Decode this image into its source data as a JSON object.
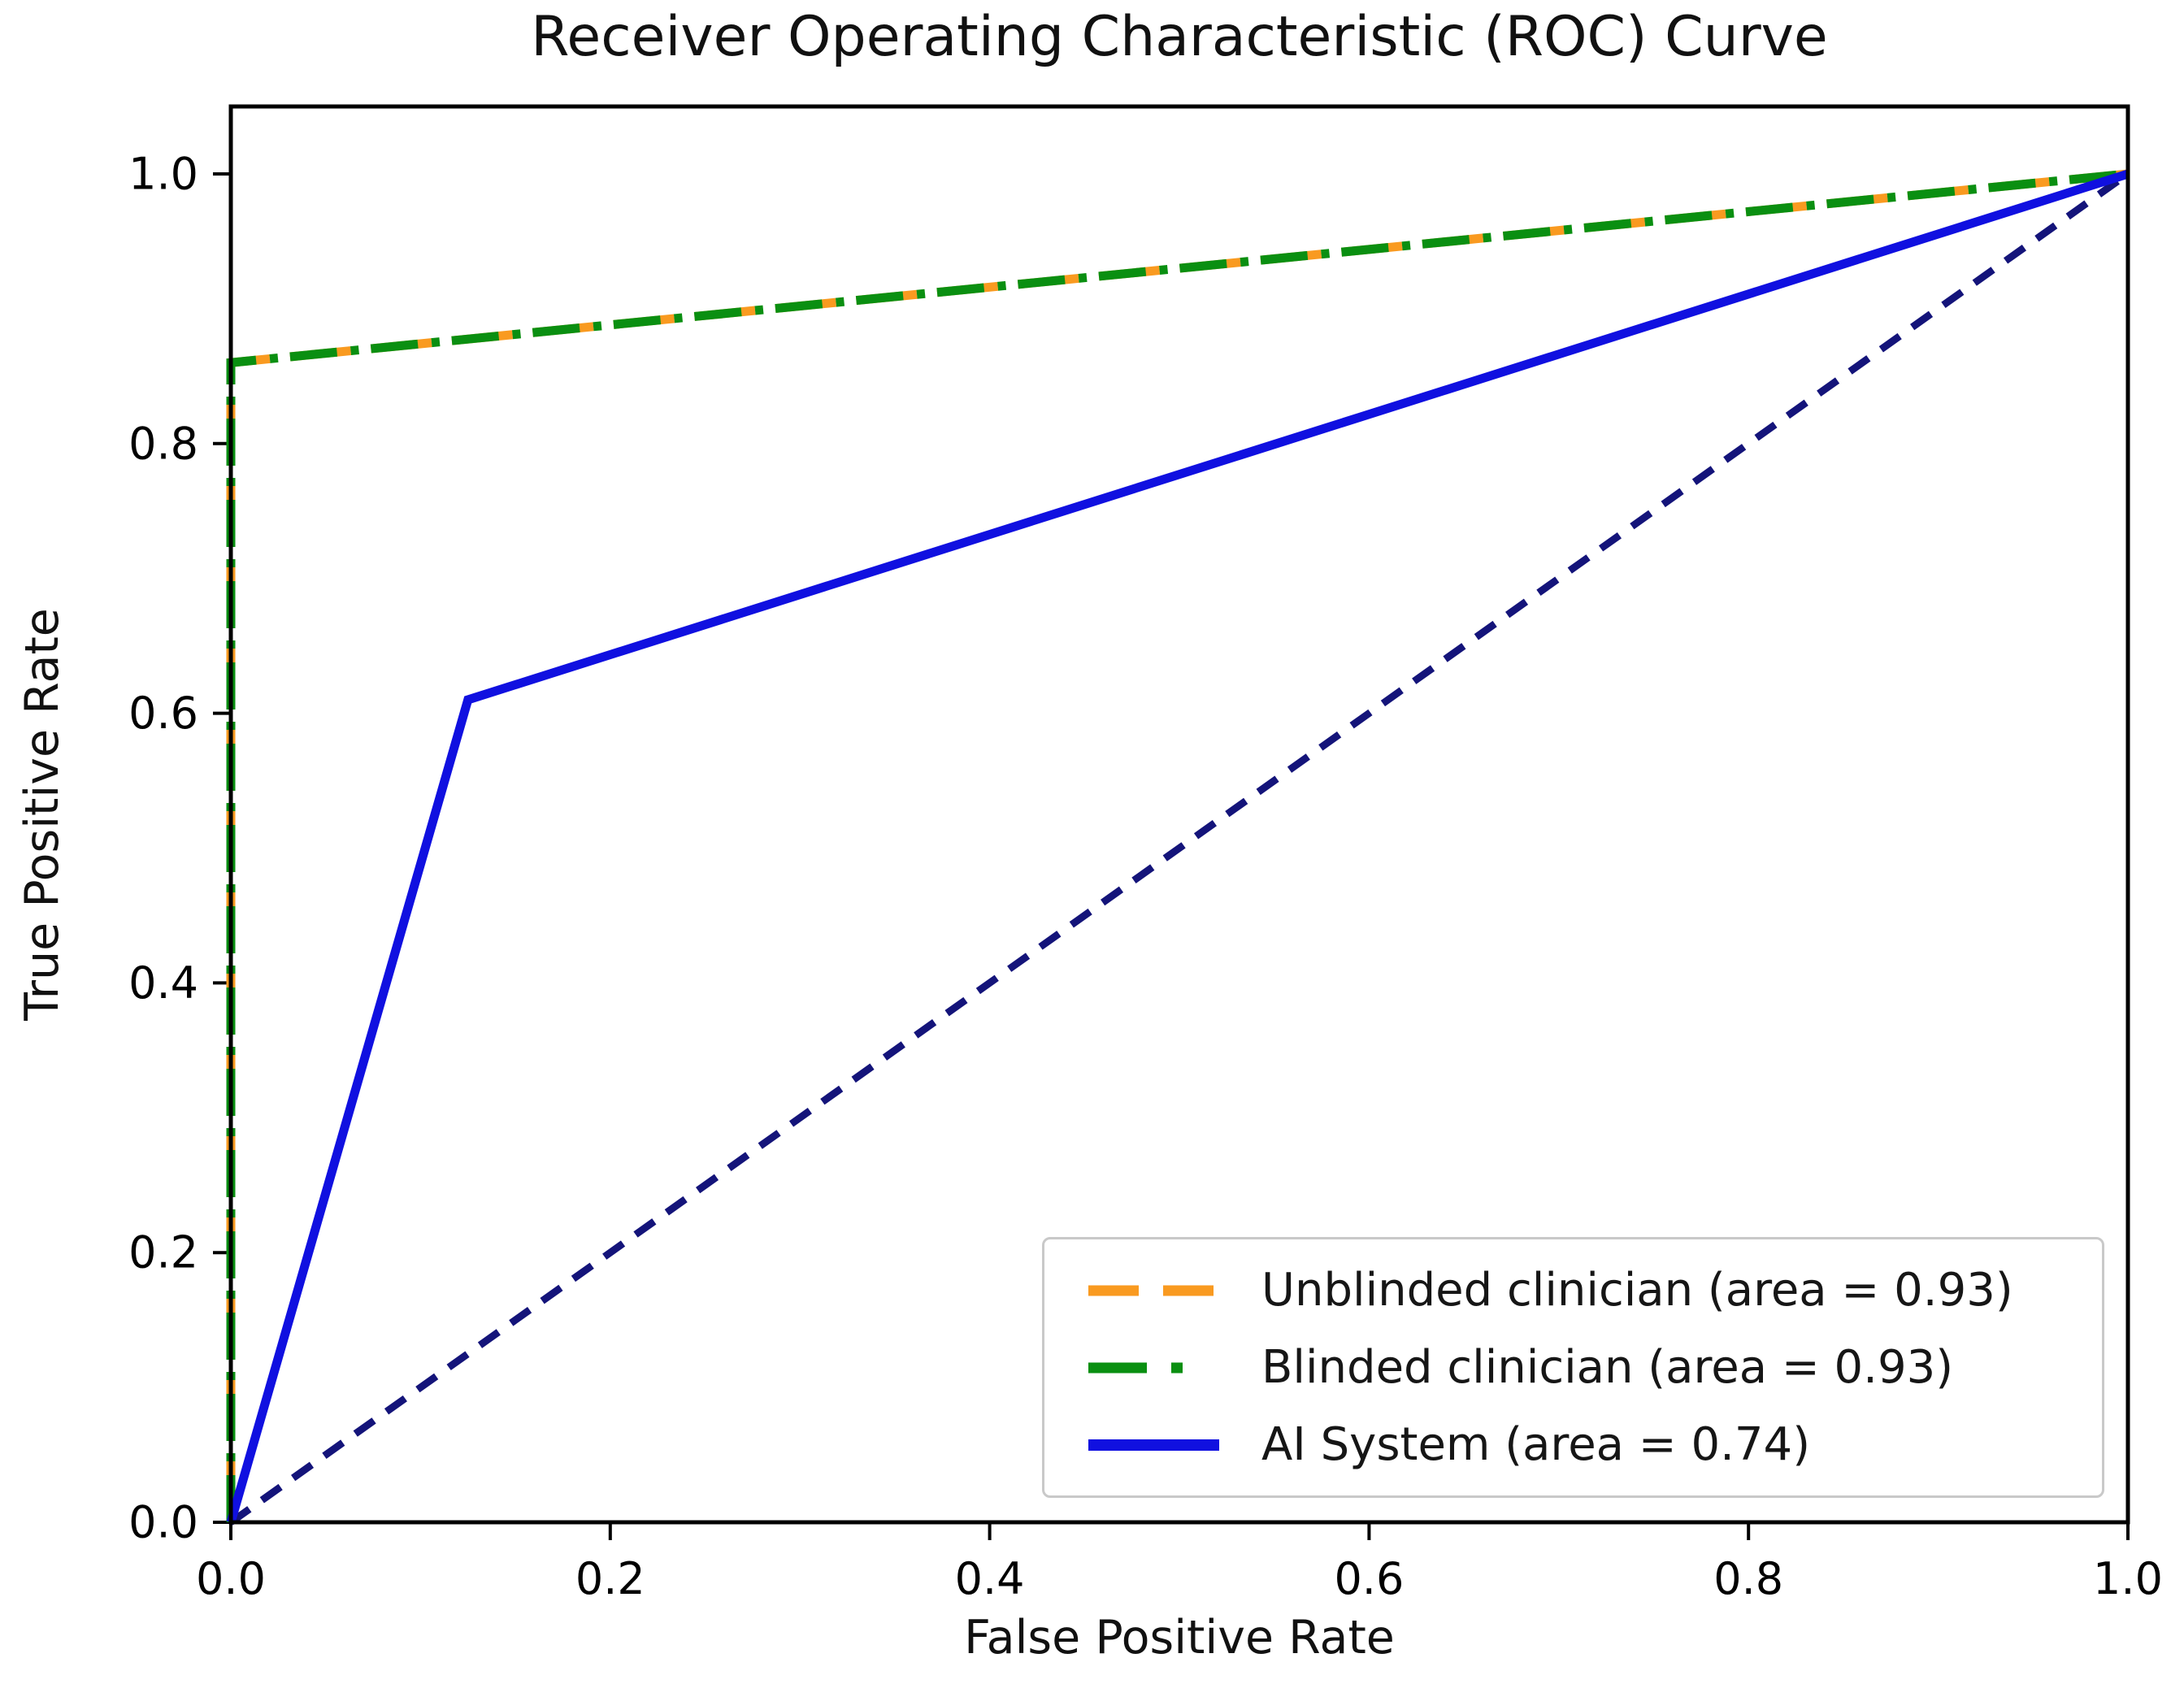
{
  "chart_data": {
    "type": "line",
    "title": "Receiver Operating Characteristic (ROC) Curve",
    "xlabel": "False Positive Rate",
    "ylabel": "True Positive Rate",
    "xlim": [
      0.0,
      1.0
    ],
    "ylim": [
      0.0,
      1.05
    ],
    "x_ticks": [
      0.0,
      0.2,
      0.4,
      0.6,
      0.8,
      1.0
    ],
    "y_ticks": [
      0.0,
      0.2,
      0.4,
      0.6,
      0.8,
      1.0
    ],
    "grid": false,
    "legend_position": "lower right",
    "axis_color": "#000000",
    "series": [
      {
        "name": "Unblinded clinician (area = 0.93)",
        "auc": 0.93,
        "color": "#f99a20",
        "style": "dashed",
        "points": [
          [
            0.0,
            0.0
          ],
          [
            0.0,
            0.86
          ],
          [
            1.0,
            1.0
          ]
        ]
      },
      {
        "name": "Blinded clinician (area = 0.93)",
        "auc": 0.93,
        "color": "#0a8f11",
        "style": "dashdot",
        "points": [
          [
            0.0,
            0.0
          ],
          [
            0.0,
            0.86
          ],
          [
            1.0,
            1.0
          ]
        ]
      },
      {
        "name": "AI System (area = 0.74)",
        "auc": 0.74,
        "color": "#1010e0",
        "style": "solid",
        "points": [
          [
            0.0,
            0.0
          ],
          [
            0.125,
            0.61
          ],
          [
            1.0,
            1.0
          ]
        ]
      }
    ],
    "reference_line": {
      "name": "chance diagonal",
      "color": "#14147a",
      "style": "dashed",
      "points": [
        [
          0.0,
          0.0
        ],
        [
          1.0,
          1.0
        ]
      ]
    }
  }
}
